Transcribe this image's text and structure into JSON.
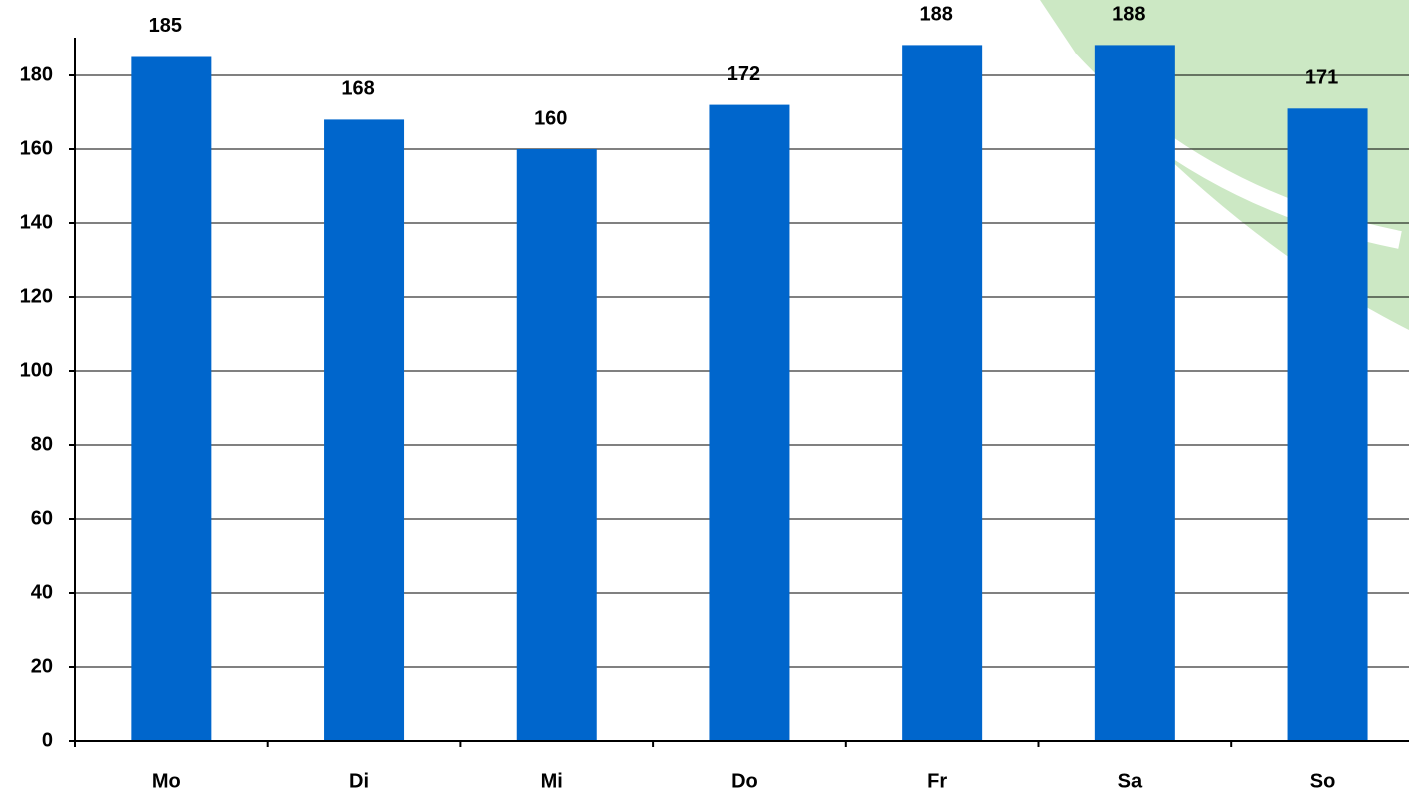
{
  "chart_data": {
    "type": "bar",
    "categories": [
      "Mo",
      "Di",
      "Mi",
      "Do",
      "Fr",
      "Sa",
      "So"
    ],
    "values": [
      185,
      168,
      160,
      172,
      188,
      188,
      171
    ],
    "color": "#0066cc",
    "ylim": [
      0,
      190
    ],
    "yticks": [
      0,
      20,
      40,
      60,
      80,
      100,
      120,
      140,
      160,
      180
    ],
    "grid": true
  }
}
